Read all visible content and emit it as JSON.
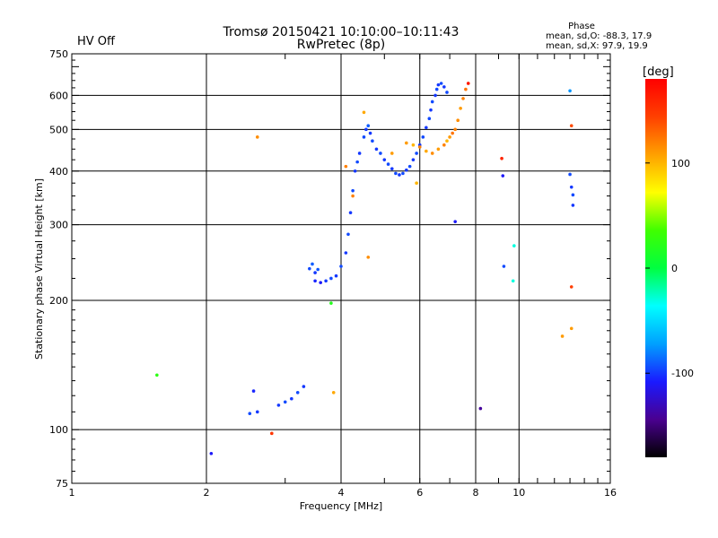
{
  "chart_data": {
    "type": "scatter",
    "title": "Tromsø 20150421 10:10:00–10:11:43",
    "subtitle": "RwPretec (8p)",
    "status_text": "HV Off",
    "status_color": "#d11010",
    "phase_box": {
      "heading": "Phase",
      "line_o": "mean, sd,O: -88.3, 17.9",
      "line_x": "mean, sd,X:  97.9, 19.9"
    },
    "xlabel": "Frequency [MHz]",
    "ylabel": "Stationary phase Virtual Height [km]",
    "x_scale": "log",
    "y_scale": "log",
    "xlim": [
      1,
      16
    ],
    "ylim": [
      75,
      750
    ],
    "x_ticks": [
      {
        "v": 1,
        "label": "1",
        "grid": false
      },
      {
        "v": 2,
        "label": "2",
        "grid": true
      },
      {
        "v": 4,
        "label": "4",
        "grid": true
      },
      {
        "v": 6,
        "label": "6",
        "grid": true
      },
      {
        "v": 8,
        "label": "8",
        "grid": true
      },
      {
        "v": 10,
        "label": "10",
        "grid": true
      },
      {
        "v": 16,
        "label": "16",
        "grid": false
      }
    ],
    "y_ticks": [
      {
        "v": 75,
        "label": "75",
        "grid": false
      },
      {
        "v": 100,
        "label": "100",
        "grid": true
      },
      {
        "v": 200,
        "label": "200",
        "grid": true
      },
      {
        "v": 300,
        "label": "300",
        "grid": true
      },
      {
        "v": 400,
        "label": "400",
        "grid": true
      },
      {
        "v": 500,
        "label": "500",
        "grid": true
      },
      {
        "v": 600,
        "label": "600",
        "grid": true
      },
      {
        "v": 750,
        "label": "750",
        "grid": false
      }
    ],
    "colorbar": {
      "label": "[deg]",
      "range": [
        -180,
        180
      ],
      "ticks": [
        {
          "v": 100,
          "label": "100"
        },
        {
          "v": 0,
          "label": "0"
        },
        {
          "v": -100,
          "label": "-100"
        }
      ],
      "stops": [
        "#000000",
        "#4a0090",
        "#1a1aff",
        "#00a0ff",
        "#00ffff",
        "#00ff40",
        "#40ff00",
        "#ffff00",
        "#ffa000",
        "#ff4000",
        "#ff0000"
      ]
    },
    "series": [
      {
        "points": [
          [
            3.4,
            237,
            -95
          ],
          [
            3.45,
            243,
            -90
          ],
          [
            3.5,
            232,
            -100
          ],
          [
            3.55,
            236,
            -92
          ],
          [
            3.5,
            222,
            -105
          ],
          [
            3.6,
            220,
            -110
          ],
          [
            3.7,
            222,
            -100
          ],
          [
            3.8,
            225,
            -95
          ],
          [
            3.9,
            228,
            -100
          ],
          [
            4.0,
            240,
            -95
          ],
          [
            4.1,
            258,
            -100
          ],
          [
            4.15,
            285,
            -95
          ],
          [
            4.2,
            320,
            -100
          ],
          [
            4.25,
            360,
            -95
          ],
          [
            4.3,
            400,
            -100
          ],
          [
            4.35,
            420,
            -95
          ],
          [
            4.4,
            440,
            -100
          ],
          [
            4.5,
            480,
            -95
          ],
          [
            4.55,
            500,
            -100
          ],
          [
            4.6,
            510,
            -90
          ],
          [
            4.65,
            490,
            -100
          ],
          [
            4.7,
            470,
            -95
          ],
          [
            4.8,
            450,
            -100
          ],
          [
            4.9,
            440,
            -95
          ],
          [
            5.0,
            425,
            -100
          ],
          [
            5.1,
            415,
            -95
          ],
          [
            5.2,
            405,
            -100
          ],
          [
            5.3,
            395,
            -95
          ],
          [
            5.4,
            392,
            -100
          ],
          [
            5.5,
            395,
            -95
          ],
          [
            5.6,
            402,
            -100
          ],
          [
            5.7,
            410,
            -95
          ],
          [
            5.8,
            425,
            -100
          ],
          [
            5.9,
            440,
            -95
          ],
          [
            6.0,
            460,
            -100
          ],
          [
            6.1,
            480,
            -95
          ],
          [
            6.2,
            505,
            -100
          ],
          [
            6.3,
            530,
            -95
          ],
          [
            6.35,
            555,
            -100
          ],
          [
            6.4,
            580,
            -95
          ],
          [
            6.5,
            600,
            -100
          ],
          [
            6.55,
            620,
            -95
          ],
          [
            6.6,
            635,
            -100
          ],
          [
            6.7,
            640,
            -95
          ],
          [
            6.8,
            628,
            -100
          ],
          [
            6.9,
            610,
            -95
          ],
          [
            2.5,
            109,
            -95
          ],
          [
            2.6,
            110,
            -100
          ],
          [
            2.55,
            123,
            -105
          ],
          [
            2.9,
            114,
            -100
          ],
          [
            3.0,
            116,
            -95
          ],
          [
            3.1,
            118,
            -100
          ],
          [
            3.2,
            122,
            -95
          ],
          [
            3.3,
            126,
            -100
          ],
          [
            2.05,
            88,
            -110
          ],
          [
            7.2,
            305,
            -110
          ],
          [
            9.2,
            390,
            -110
          ],
          [
            9.25,
            240,
            -95
          ],
          [
            13.0,
            615,
            -75
          ],
          [
            13.0,
            393,
            -95
          ],
          [
            13.1,
            367,
            -100
          ],
          [
            13.2,
            352,
            -95
          ],
          [
            13.2,
            333,
            -100
          ]
        ]
      },
      {
        "points": [
          [
            5.6,
            465,
            110
          ],
          [
            5.8,
            460,
            100
          ],
          [
            6.0,
            455,
            120
          ],
          [
            6.2,
            445,
            105
          ],
          [
            6.4,
            440,
            115
          ],
          [
            6.6,
            450,
            110
          ],
          [
            6.8,
            460,
            120
          ],
          [
            7.0,
            480,
            110
          ],
          [
            7.2,
            500,
            120
          ],
          [
            7.3,
            525,
            115
          ],
          [
            7.4,
            560,
            110
          ],
          [
            7.5,
            590,
            120
          ],
          [
            7.6,
            620,
            125
          ],
          [
            7.7,
            640,
            115
          ],
          [
            6.9,
            470,
            100
          ],
          [
            7.1,
            490,
            125
          ],
          [
            4.5,
            548,
            105
          ],
          [
            4.1,
            410,
            120
          ],
          [
            5.2,
            440,
            110
          ],
          [
            5.9,
            375,
            100
          ],
          [
            2.6,
            480,
            115
          ],
          [
            4.6,
            252,
            115
          ],
          [
            4.25,
            350,
            120
          ],
          [
            3.85,
            122,
            105
          ],
          [
            2.8,
            98,
            150
          ],
          [
            7.7,
            640,
            170
          ],
          [
            9.15,
            428,
            160
          ],
          [
            12.5,
            165,
            110
          ],
          [
            13.1,
            510,
            140
          ],
          [
            13.1,
            215,
            145
          ],
          [
            13.1,
            172,
            110
          ]
        ]
      },
      {
        "points": [
          [
            1.55,
            134,
            25
          ],
          [
            3.8,
            197,
            20
          ],
          [
            9.7,
            222,
            -30
          ],
          [
            9.75,
            268,
            -30
          ],
          [
            8.2,
            112,
            -140
          ]
        ]
      }
    ]
  }
}
